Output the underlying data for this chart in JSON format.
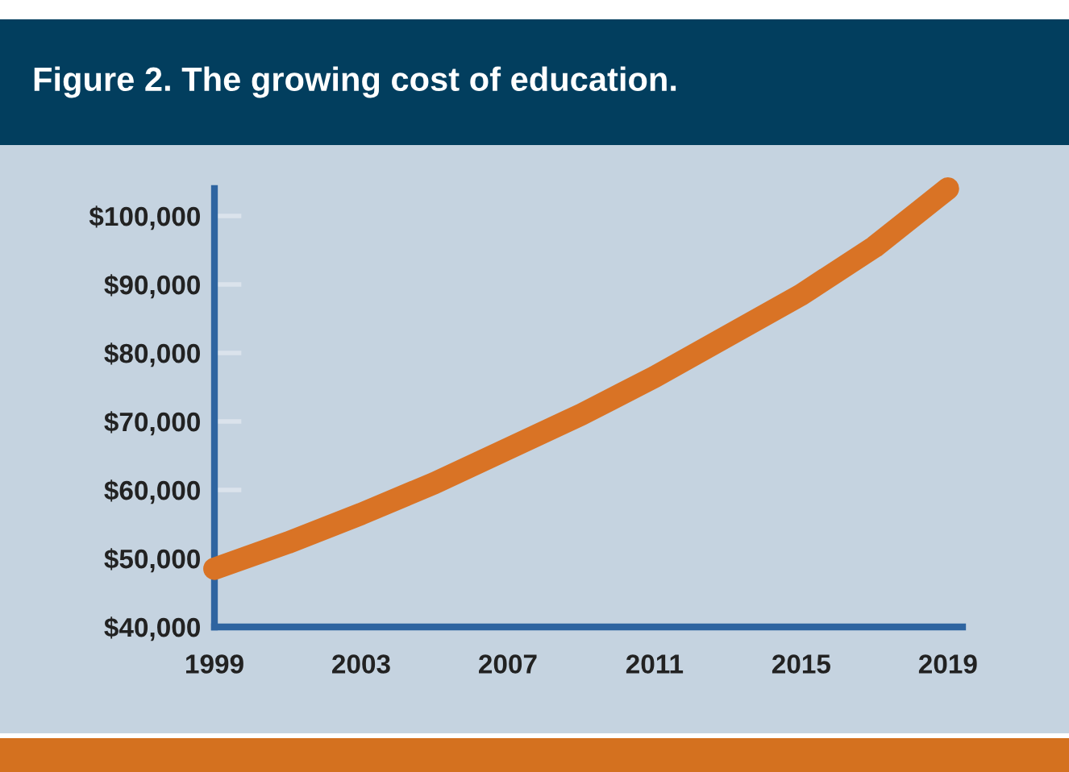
{
  "chart_data": {
    "type": "line",
    "title": "Figure 2. The growing cost of education.",
    "x": [
      1999,
      2001,
      2003,
      2005,
      2007,
      2009,
      2011,
      2013,
      2015,
      2017,
      2019
    ],
    "values": [
      48500,
      52300,
      56500,
      61000,
      66000,
      71000,
      76500,
      82500,
      88500,
      95500,
      104000
    ],
    "color": "#d97325",
    "line_style": "solid",
    "xlim": [
      1999,
      2019.4
    ],
    "xticks": [
      1999,
      2003,
      2007,
      2011,
      2015,
      2019
    ],
    "ylim": [
      40000,
      104000
    ],
    "yticks": [
      {
        "value": 40000,
        "label": "$40,000"
      },
      {
        "value": 50000,
        "label": "$50,000"
      },
      {
        "value": 60000,
        "label": "$60,000"
      },
      {
        "value": 70000,
        "label": "$70,000"
      },
      {
        "value": 80000,
        "label": "$80,000"
      },
      {
        "value": 90000,
        "label": "$90,000"
      },
      {
        "value": 100000,
        "label": "$100,000"
      }
    ],
    "grid": false
  }
}
